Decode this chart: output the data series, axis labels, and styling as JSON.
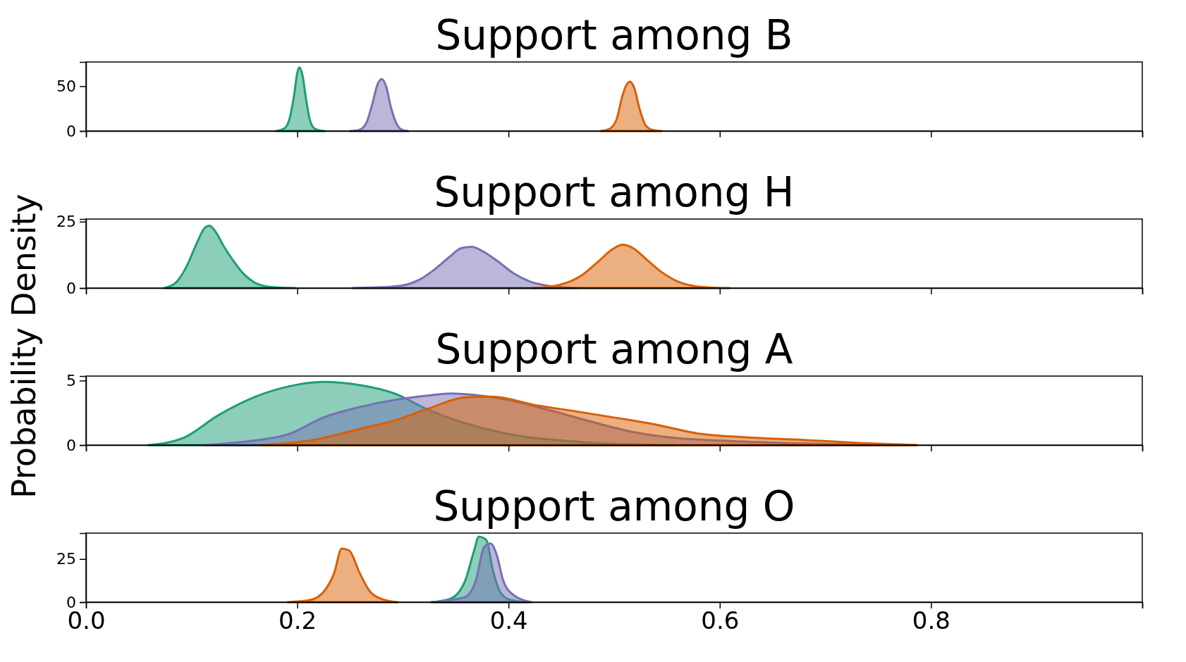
{
  "chart_data": [
    {
      "type": "area",
      "title": "Support among B",
      "xlim": [
        0,
        1
      ],
      "xticks": [
        0,
        0.2,
        0.4,
        0.6,
        0.8,
        1
      ],
      "ylim": [
        0,
        77
      ],
      "yticks": [
        0,
        50
      ],
      "tick_labels": "y",
      "series": [
        {
          "color": "#1b9e77",
          "x": [
            0.18,
            0.188,
            0.193,
            0.197,
            0.2,
            0.202,
            0.205,
            0.208,
            0.212,
            0.216,
            0.222,
            0.226
          ],
          "values": [
            0,
            3,
            15,
            40,
            65,
            71,
            62,
            38,
            12,
            3,
            0.5,
            0
          ]
        },
        {
          "color": "#7570b3",
          "x": [
            0.25,
            0.258,
            0.265,
            0.271,
            0.276,
            0.28,
            0.284,
            0.289,
            0.294,
            0.3,
            0.305
          ],
          "values": [
            0,
            1,
            8,
            30,
            52,
            58,
            50,
            25,
            8,
            1,
            0
          ]
        },
        {
          "color": "#d95f02",
          "x": [
            0.487,
            0.495,
            0.502,
            0.508,
            0.512,
            0.515,
            0.519,
            0.524,
            0.53,
            0.537,
            0.545
          ],
          "values": [
            0,
            2,
            12,
            40,
            52,
            55,
            48,
            25,
            6,
            1,
            0
          ]
        }
      ]
    },
    {
      "type": "area",
      "title": "Support among H",
      "ylabel": "Probability Density",
      "xlim": [
        0,
        1
      ],
      "xticks": [
        0,
        0.2,
        0.4,
        0.6,
        0.8,
        1
      ],
      "ylim": [
        0,
        26
      ],
      "yticks": [
        0,
        25
      ],
      "tick_labels": "y",
      "series": [
        {
          "color": "#1b9e77",
          "x": [
            0.074,
            0.085,
            0.095,
            0.105,
            0.112,
            0.117,
            0.123,
            0.13,
            0.14,
            0.15,
            0.16,
            0.175,
            0.198
          ],
          "values": [
            0,
            2,
            8,
            17,
            22.5,
            23.5,
            21,
            16,
            10,
            5,
            2,
            0.4,
            0
          ]
        },
        {
          "color": "#7570b3",
          "x": [
            0.252,
            0.28,
            0.3,
            0.315,
            0.33,
            0.345,
            0.355,
            0.365,
            0.375,
            0.39,
            0.405,
            0.42,
            0.435,
            0.45,
            0.465
          ],
          "values": [
            0,
            0.3,
            1,
            3,
            7,
            12,
            15,
            15.5,
            14,
            10,
            5.5,
            2.5,
            1,
            0.3,
            0
          ]
        },
        {
          "color": "#d95f02",
          "x": [
            0.422,
            0.44,
            0.455,
            0.47,
            0.485,
            0.498,
            0.508,
            0.518,
            0.53,
            0.545,
            0.56,
            0.575,
            0.59,
            0.609
          ],
          "values": [
            0,
            0.5,
            2,
            5,
            10,
            14.5,
            16.3,
            15,
            11,
            6,
            2.5,
            0.8,
            0.2,
            0
          ]
        }
      ]
    },
    {
      "type": "area",
      "title": "Support among A",
      "xlim": [
        0,
        1
      ],
      "xticks": [
        0,
        0.2,
        0.4,
        0.6,
        0.8,
        1
      ],
      "ylim": [
        0,
        5.35
      ],
      "yticks": [
        0,
        5
      ],
      "tick_labels": "y",
      "series": [
        {
          "color": "#1b9e77",
          "x": [
            0.059,
            0.092,
            0.125,
            0.159,
            0.192,
            0.225,
            0.259,
            0.292,
            0.325,
            0.359,
            0.392,
            0.425,
            0.459,
            0.492,
            0.559
          ],
          "values": [
            0,
            0.55,
            2.3,
            3.7,
            4.55,
            4.9,
            4.65,
            4,
            2.7,
            1.7,
            1,
            0.55,
            0.3,
            0.12,
            0
          ]
        },
        {
          "color": "#7570b3",
          "x": [
            0.112,
            0.159,
            0.192,
            0.225,
            0.259,
            0.292,
            0.325,
            0.345,
            0.372,
            0.399,
            0.439,
            0.479,
            0.519,
            0.559,
            0.599,
            0.659,
            0.725,
            0.785
          ],
          "values": [
            0,
            0.35,
            0.85,
            2.15,
            2.95,
            3.5,
            3.85,
            4,
            3.85,
            3.5,
            2.7,
            1.8,
            1,
            0.55,
            0.35,
            0.17,
            0.05,
            0
          ]
        },
        {
          "color": "#d95f02",
          "x": [
            0.165,
            0.212,
            0.259,
            0.292,
            0.325,
            0.359,
            0.385,
            0.425,
            0.465,
            0.499,
            0.539,
            0.579,
            0.625,
            0.679,
            0.732,
            0.787
          ],
          "values": [
            0,
            0.35,
            1.25,
            1.9,
            2.85,
            3.7,
            3.75,
            3.1,
            2.6,
            2.15,
            1.6,
            0.9,
            0.6,
            0.4,
            0.17,
            0
          ]
        }
      ]
    },
    {
      "type": "area",
      "title": "Support among O",
      "xlim": [
        0,
        1
      ],
      "xticks": [
        {
          "value": 0,
          "label": "0.0"
        },
        0.2,
        0.4,
        0.6,
        0.8,
        {
          "value": 1,
          "label": null
        }
      ],
      "ylim": [
        0,
        40
      ],
      "yticks": [
        0,
        25
      ],
      "series": [
        {
          "color": "#d95f02",
          "x": [
            0.191,
            0.212,
            0.225,
            0.235,
            0.242,
            0.249,
            0.259,
            0.269,
            0.279,
            0.295
          ],
          "values": [
            0,
            1.2,
            6,
            17,
            31,
            30,
            17,
            6,
            2,
            0
          ]
        },
        {
          "color": "#1b9e77",
          "x": [
            0.327,
            0.345,
            0.359,
            0.367,
            0.372,
            0.379,
            0.385,
            0.392,
            0.402,
            0.419
          ],
          "values": [
            0,
            2,
            12.5,
            29,
            38,
            36,
            19,
            6,
            1.2,
            0
          ]
        },
        {
          "color": "#7570b3",
          "x": [
            0.327,
            0.359,
            0.369,
            0.377,
            0.383,
            0.389,
            0.395,
            0.405,
            0.422
          ],
          "values": [
            0,
            3,
            12.5,
            32,
            34,
            27,
            12.5,
            4,
            0
          ]
        }
      ]
    }
  ]
}
